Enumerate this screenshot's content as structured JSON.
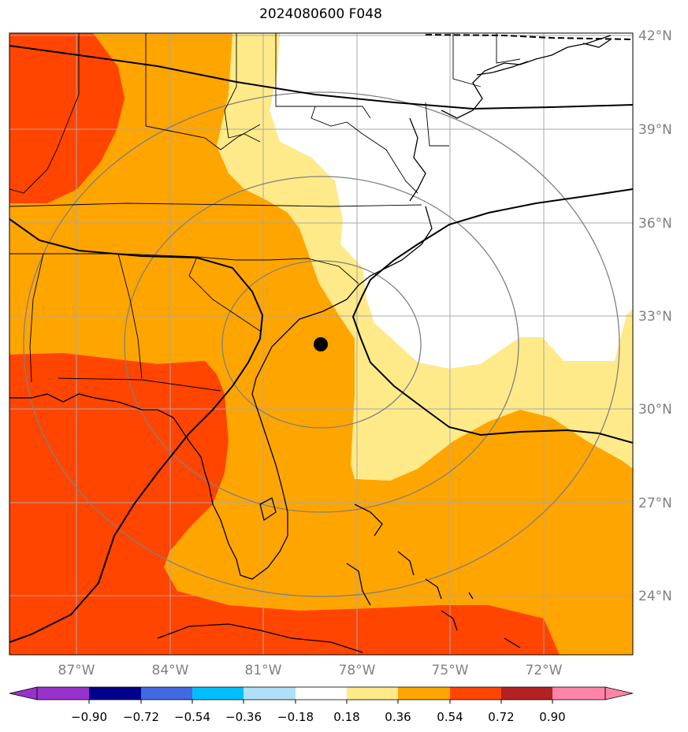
{
  "title": "2024080600 F048",
  "map": {
    "lat_labels": [
      "42°N",
      "39°N",
      "36°N",
      "33°N",
      "30°N",
      "27°N",
      "24°N"
    ],
    "lon_labels": [
      "87°W",
      "84°W",
      "81°W",
      "78°W",
      "75°W",
      "72°W"
    ],
    "colors": {
      "white": "#ffffff",
      "light_yellow": "#ffea8a",
      "orange": "#ffa500",
      "red_orange": "#ff4500",
      "grid": "#a0a0a0",
      "ring": "#808080"
    },
    "marker": "storm-center-dot"
  },
  "colorbar": {
    "tick_labels": [
      "−0.90",
      "−0.72",
      "−0.54",
      "−0.36",
      "−0.18",
      "0.18",
      "0.36",
      "0.54",
      "0.72",
      "0.90"
    ],
    "colors": [
      "#9932cc",
      "#00008b",
      "#4169e1",
      "#00bfff",
      "#b0e0f8",
      "#ffffff",
      "#ffea8a",
      "#ffa500",
      "#ff4500",
      "#b22222",
      "#ff85a8"
    ]
  }
}
